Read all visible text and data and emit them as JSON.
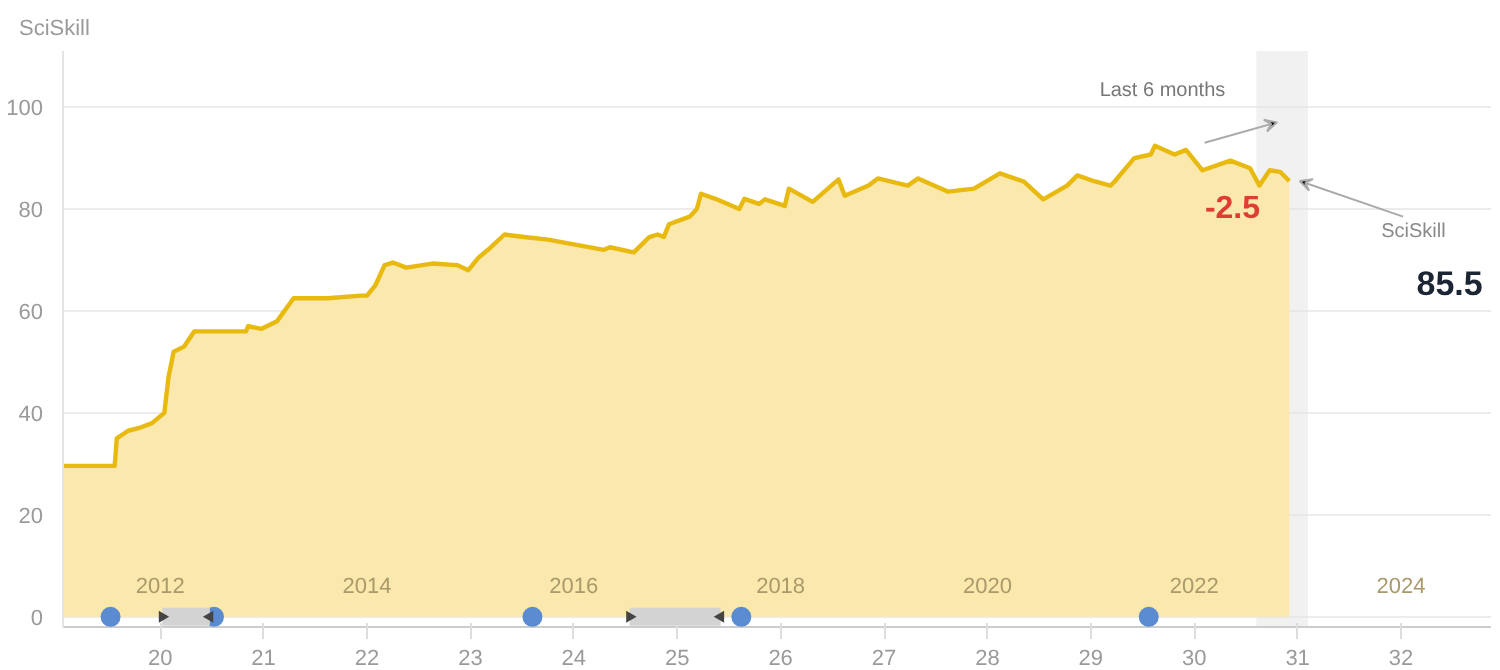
{
  "chart_data": {
    "type": "area",
    "ylabel": "SciSkill",
    "xlim": [
      2011.06,
      2024.87
    ],
    "xticks": [
      2012,
      2014,
      2016,
      2018,
      2020,
      2022,
      2024
    ],
    "x2lim": [
      19.06,
      32.87
    ],
    "x2ticks": [
      20,
      21,
      22,
      23,
      24,
      25,
      26,
      27,
      28,
      29,
      30,
      31,
      32
    ],
    "ylim": [
      -2,
      111
    ],
    "yticks": [
      0,
      20,
      40,
      60,
      80,
      100
    ],
    "grid": "y",
    "series": [
      {
        "color": "#e8b90f",
        "x": [
          2011.06,
          2011.56,
          2011.58,
          2011.69,
          2011.79,
          2011.92,
          2012.04,
          2012.08,
          2012.13,
          2012.23,
          2012.33,
          2012.83,
          2012.85,
          2012.98,
          2013.13,
          2013.29,
          2013.62,
          2013.94,
          2014.0,
          2014.08,
          2014.17,
          2014.25,
          2014.38,
          2014.63,
          2014.87,
          2014.98,
          2015.08,
          2015.17,
          2015.33,
          2015.52,
          2015.75,
          2016.29,
          2016.35,
          2016.58,
          2016.73,
          2016.81,
          2016.87,
          2016.92,
          2017.12,
          2017.19,
          2017.23,
          2017.37,
          2017.6,
          2017.65,
          2017.79,
          2017.85,
          2018.04,
          2018.08,
          2018.31,
          2018.56,
          2018.62,
          2018.85,
          2018.94,
          2019.23,
          2019.33,
          2019.62,
          2019.87,
          2020.12,
          2020.35,
          2020.54,
          2020.77,
          2020.87,
          2021.04,
          2021.19,
          2021.23,
          2021.42,
          2021.58,
          2021.62,
          2021.81,
          2021.92,
          2022.08,
          2022.35,
          2022.54,
          2022.63,
          2022.73,
          2022.83,
          2022.92
        ],
        "values": [
          29.6,
          29.6,
          35,
          36.5,
          37,
          38,
          40,
          47,
          52,
          53,
          56,
          56,
          57,
          56.5,
          58,
          62.5,
          62.5,
          63,
          63,
          65,
          69,
          69.5,
          68.5,
          69.3,
          69,
          68,
          70.5,
          72,
          75,
          74.5,
          74,
          72,
          72.5,
          71.5,
          74.5,
          75,
          74.5,
          77,
          78.5,
          80,
          83,
          82,
          80,
          82,
          81,
          81.9,
          80.6,
          84,
          81.4,
          85.8,
          82.6,
          84.6,
          86,
          84.6,
          86,
          83.4,
          84,
          87,
          85.4,
          81.9,
          84.6,
          86.6,
          85.4,
          84.6,
          85.4,
          90,
          90.7,
          92.4,
          90.7,
          91.6,
          87.6,
          89.5,
          88,
          84.6,
          87.6,
          87.3,
          85.5
        ]
      },
      {
        "type": "scatter",
        "color": "#5b8bd0",
        "marker": "circle",
        "x": [
          2011.52,
          2012.52,
          2015.6,
          2017.62,
          2021.56
        ],
        "values": [
          0,
          0,
          0,
          0,
          0
        ]
      },
      {
        "type": "scatter",
        "color": "#444444",
        "marker": "triangle",
        "x": [
          2012.02,
          2012.48,
          2016.54,
          2017.42
        ],
        "values": [
          0,
          0,
          0,
          0
        ],
        "xerrors": [
          [
            2012.02,
            2012.48
          ],
          null,
          [
            2016.54,
            2017.42
          ],
          null
        ]
      }
    ],
    "bands": [
      {
        "axis": "x",
        "from": 2022.6,
        "to": 2023.1,
        "label": "Last 6 months",
        "color": "#e6e6e6"
      }
    ],
    "annotations": [
      "-2.5",
      "SciSkill",
      "85.5"
    ]
  }
}
